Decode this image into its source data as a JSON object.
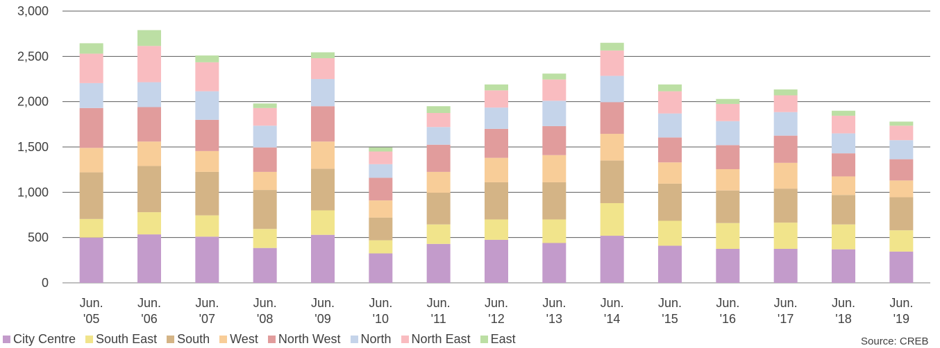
{
  "chart_data": {
    "type": "bar",
    "stacked": true,
    "title": "",
    "xlabel": "",
    "ylabel": "",
    "ylim": [
      0,
      3000
    ],
    "yticks": [
      0,
      500,
      1000,
      1500,
      2000,
      2500,
      3000
    ],
    "ytick_labels": [
      "0",
      "500",
      "1,000",
      "1,500",
      "2,000",
      "2,500",
      "3,000"
    ],
    "grid": true,
    "legend_position": "bottom-left",
    "categories": [
      [
        "Jun.",
        "'05"
      ],
      [
        "Jun.",
        "'06"
      ],
      [
        "Jun.",
        "'07"
      ],
      [
        "Jun.",
        "'08"
      ],
      [
        "Jun.",
        "'09"
      ],
      [
        "Jun.",
        "'10"
      ],
      [
        "Jun.",
        "'11"
      ],
      [
        "Jun.",
        "'12"
      ],
      [
        "Jun.",
        "'13"
      ],
      [
        "Jun.",
        "'14"
      ],
      [
        "Jun.",
        "'15"
      ],
      [
        "Jun.",
        "'16"
      ],
      [
        "Jun.",
        "'17"
      ],
      [
        "Jun.",
        "'18"
      ],
      [
        "Jun.",
        "'19"
      ]
    ],
    "series": [
      {
        "name": "City Centre",
        "color": "#c39bcb",
        "values": [
          500,
          535,
          510,
          385,
          530,
          325,
          430,
          475,
          440,
          520,
          410,
          375,
          375,
          370,
          345
        ]
      },
      {
        "name": "South East",
        "color": "#f1e48b",
        "values": [
          205,
          245,
          235,
          210,
          270,
          145,
          215,
          225,
          260,
          360,
          275,
          285,
          290,
          275,
          235
        ]
      },
      {
        "name": "South",
        "color": "#d4b486",
        "values": [
          515,
          510,
          480,
          430,
          460,
          250,
          350,
          410,
          410,
          470,
          410,
          360,
          375,
          325,
          365
        ]
      },
      {
        "name": "West",
        "color": "#f8cd98",
        "values": [
          270,
          270,
          230,
          200,
          300,
          190,
          230,
          270,
          300,
          295,
          235,
          235,
          285,
          205,
          185
        ]
      },
      {
        "name": "North West",
        "color": "#e19c9c",
        "values": [
          440,
          380,
          345,
          270,
          390,
          250,
          300,
          320,
          320,
          350,
          275,
          265,
          300,
          255,
          235
        ]
      },
      {
        "name": "North",
        "color": "#c5d4ea",
        "values": [
          275,
          275,
          315,
          240,
          300,
          150,
          195,
          235,
          280,
          290,
          265,
          265,
          260,
          220,
          210
        ]
      },
      {
        "name": "North East",
        "color": "#f9bcc0",
        "values": [
          325,
          400,
          320,
          195,
          230,
          140,
          155,
          190,
          235,
          280,
          245,
          190,
          185,
          195,
          160
        ]
      },
      {
        "name": "East",
        "color": "#bcdfa4",
        "values": [
          115,
          175,
          75,
          50,
          65,
          45,
          75,
          65,
          65,
          85,
          75,
          55,
          65,
          55,
          45
        ]
      }
    ]
  },
  "footer": {
    "source": "Source: CREB"
  }
}
